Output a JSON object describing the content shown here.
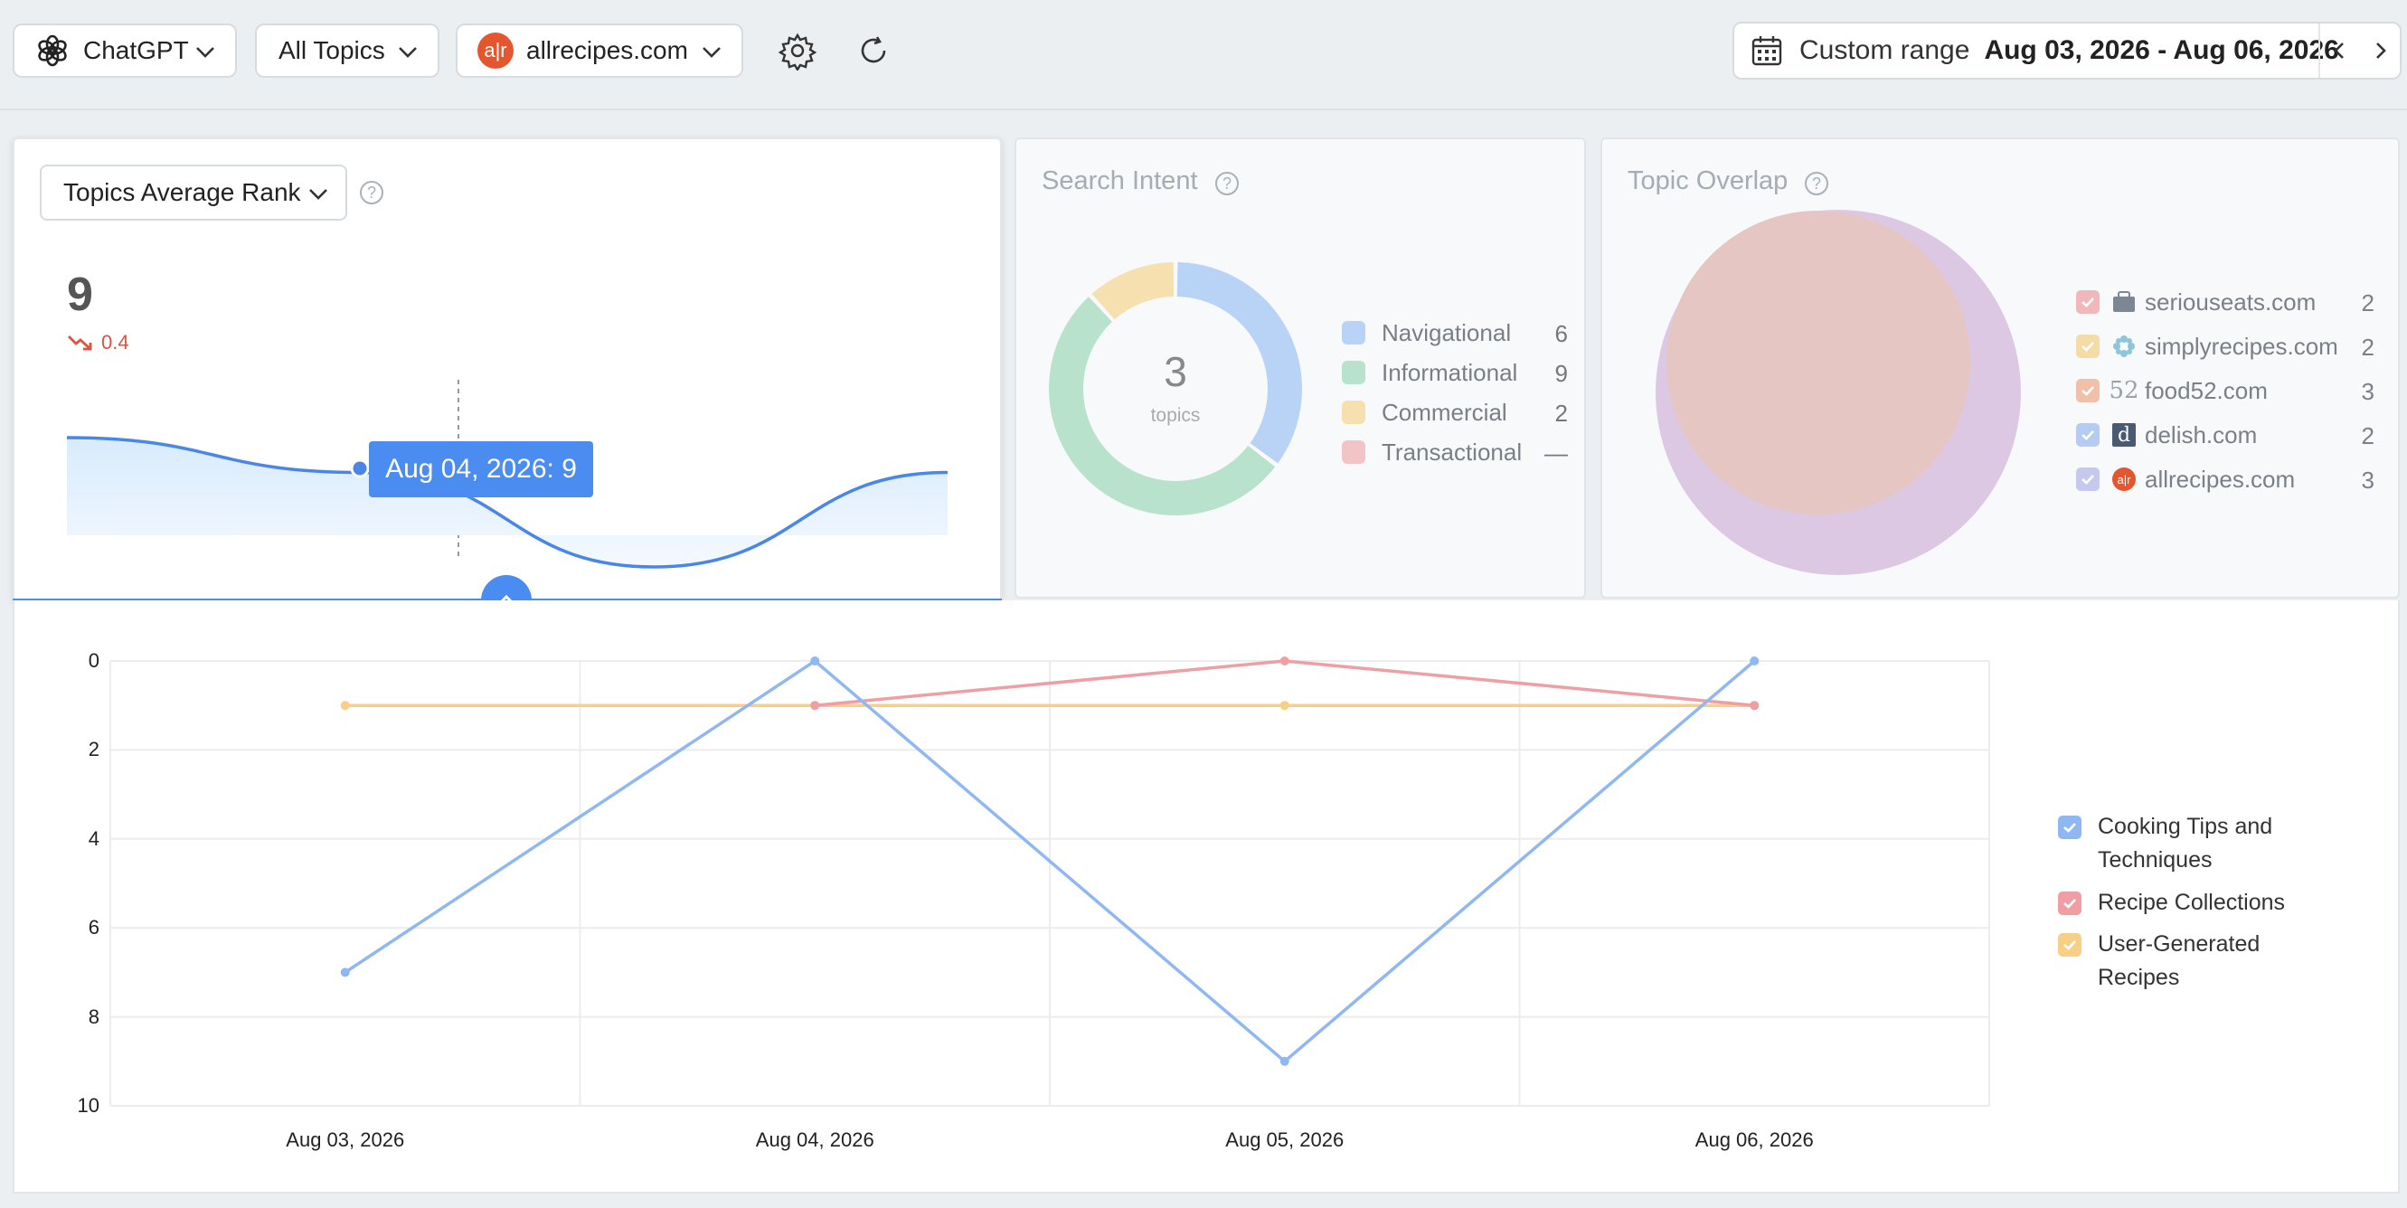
{
  "toolbar": {
    "engine": "ChatGPT",
    "topics": "All Topics",
    "domain": "allrecipes.com",
    "range_label": "Custom range",
    "range_value": "Aug 03, 2026 - Aug 06, 2026"
  },
  "rank_card": {
    "metric": "Topics Average Rank",
    "value": "9",
    "delta": "0.4",
    "tooltip": "Aug 04, 2026: 9",
    "sparkline": [
      {
        "x": "Aug 03, 2026",
        "y": 7.6
      },
      {
        "x": "Aug 04, 2026",
        "y": 9
      },
      {
        "x": "Aug 05, 2026",
        "y": 12.8
      },
      {
        "x": "Aug 06, 2026",
        "y": 9
      }
    ]
  },
  "intent_card": {
    "title": "Search Intent",
    "center_value": "3",
    "center_label": "topics",
    "items": [
      {
        "label": "Navigational",
        "count": "6",
        "color": "#b9d3f7"
      },
      {
        "label": "Informational",
        "count": "9",
        "color": "#b9e2cc"
      },
      {
        "label": "Commercial",
        "count": "2",
        "color": "#f7e0b0"
      },
      {
        "label": "Transactional",
        "count": "—",
        "color": "#f3c4c6"
      }
    ]
  },
  "overlap_card": {
    "title": "Topic Overlap",
    "sites": [
      {
        "name": "seriouseats.com",
        "count": "2",
        "check_color": "#f2b7bb",
        "icon": "bag-icon"
      },
      {
        "name": "simplyrecipes.com",
        "count": "2",
        "check_color": "#f5dba6",
        "icon": "flower-icon"
      },
      {
        "name": "food52.com",
        "count": "3",
        "check_color": "#f1c0a8",
        "icon": "food52-icon",
        "icon_text": "52"
      },
      {
        "name": "delish.com",
        "count": "2",
        "check_color": "#b5cbf2",
        "icon": "delish-icon",
        "icon_text": "d"
      },
      {
        "name": "allrecipes.com",
        "count": "3",
        "check_color": "#c5c9ee",
        "icon": "allrecipes-icon",
        "icon_text": "a|r"
      }
    ]
  },
  "chart_data": {
    "type": "line",
    "categories": [
      "Aug 03, 2026",
      "Aug 04, 2026",
      "Aug 05, 2026",
      "Aug 06, 2026"
    ],
    "ylim": [
      0,
      10
    ],
    "y_inverted": true,
    "yticks": [
      "0",
      "2",
      "4",
      "6",
      "8",
      "10"
    ],
    "grid": true,
    "legend_position": "right",
    "series": [
      {
        "name": "Cooking Tips and Techniques",
        "color": "#8fb8f3",
        "values": [
          7,
          0,
          9,
          0
        ]
      },
      {
        "name": "Recipe Collections",
        "color": "#ef9ea3",
        "values": [
          null,
          1,
          0,
          1
        ]
      },
      {
        "name": "User-Generated Recipes",
        "color": "#f7cf86",
        "values": [
          1,
          1,
          1,
          1
        ]
      }
    ],
    "legend": [
      [
        "Cooking Tips and",
        "Techniques"
      ],
      [
        "Recipe Collections"
      ],
      [
        "User-Generated",
        "Recipes"
      ]
    ]
  }
}
